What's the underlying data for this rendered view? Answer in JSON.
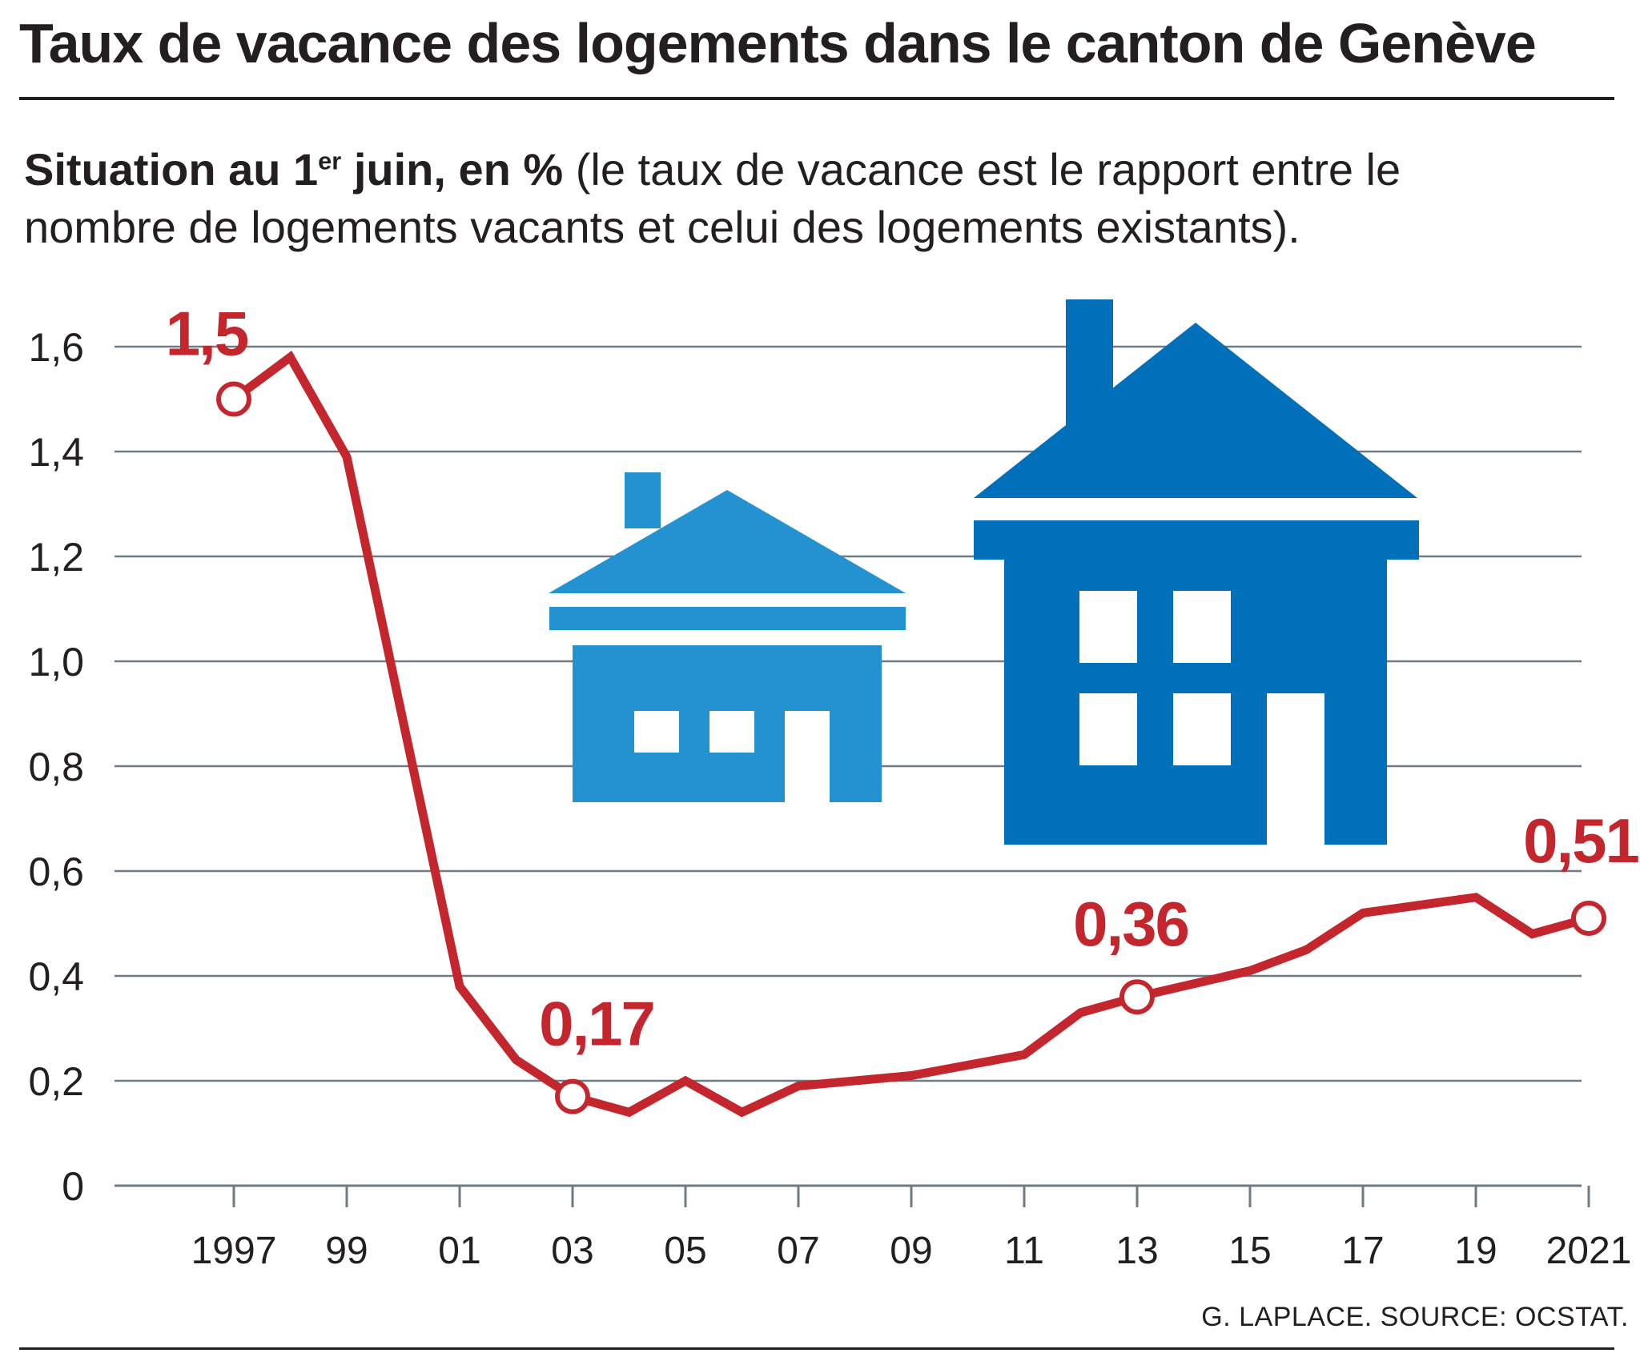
{
  "header": {
    "title": "Taux de vacance des logements dans le canton de Genève"
  },
  "subtitle": {
    "bold_pre": "Situation au 1",
    "bold_sup": "er",
    "bold_post": " juin, en %",
    "rest": " (le taux de vacance est le rapport entre le nombre de logements vacants et celui des logements existants)."
  },
  "footer": {
    "credit": "G. LAPLACE. SOURCE: OCSTAT."
  },
  "colors": {
    "line": "#c4262e",
    "grid": "#6d7b85",
    "text": "#231f20",
    "house_light": "#2492d1",
    "house_dark": "#0070bb"
  },
  "icons": [
    "small-house-icon",
    "large-house-icon"
  ],
  "chart_data": {
    "type": "line",
    "ylim": [
      0,
      1.6
    ],
    "y_ticks": [
      {
        "value": 0,
        "label": "0"
      },
      {
        "value": 0.2,
        "label": "0,2"
      },
      {
        "value": 0.4,
        "label": "0,4"
      },
      {
        "value": 0.6,
        "label": "0,6"
      },
      {
        "value": 0.8,
        "label": "0,8"
      },
      {
        "value": 1.0,
        "label": "1,0"
      },
      {
        "value": 1.2,
        "label": "1,2"
      },
      {
        "value": 1.4,
        "label": "1,4"
      },
      {
        "value": 1.6,
        "label": "1,6"
      }
    ],
    "x_ticks": [
      {
        "year": 1997,
        "label": "1997"
      },
      {
        "year": 1999,
        "label": "99"
      },
      {
        "year": 2001,
        "label": "01"
      },
      {
        "year": 2003,
        "label": "03"
      },
      {
        "year": 2005,
        "label": "05"
      },
      {
        "year": 2007,
        "label": "07"
      },
      {
        "year": 2009,
        "label": "09"
      },
      {
        "year": 2011,
        "label": "11"
      },
      {
        "year": 2013,
        "label": "13"
      },
      {
        "year": 2015,
        "label": "15"
      },
      {
        "year": 2017,
        "label": "17"
      },
      {
        "year": 2019,
        "label": "19"
      },
      {
        "year": 2021,
        "label": "2021"
      }
    ],
    "grid": true,
    "series": [
      {
        "points": [
          {
            "year": 1997,
            "value": 1.5
          },
          {
            "year": 1998,
            "value": 1.58
          },
          {
            "year": 1999,
            "value": 1.39
          },
          {
            "year": 2001,
            "value": 0.38
          },
          {
            "year": 2002,
            "value": 0.24
          },
          {
            "year": 2003,
            "value": 0.17
          },
          {
            "year": 2004,
            "value": 0.14
          },
          {
            "year": 2005,
            "value": 0.2
          },
          {
            "year": 2006,
            "value": 0.14
          },
          {
            "year": 2007,
            "value": 0.19
          },
          {
            "year": 2009,
            "value": 0.21
          },
          {
            "year": 2011,
            "value": 0.25
          },
          {
            "year": 2012,
            "value": 0.33
          },
          {
            "year": 2013,
            "value": 0.36
          },
          {
            "year": 2015,
            "value": 0.41
          },
          {
            "year": 2016,
            "value": 0.45
          },
          {
            "year": 2017,
            "value": 0.52
          },
          {
            "year": 2019,
            "value": 0.55
          },
          {
            "year": 2020,
            "value": 0.48
          },
          {
            "year": 2021,
            "value": 0.51
          }
        ]
      }
    ],
    "annotations": [
      {
        "year": 1997,
        "value": 1.5,
        "label": "1,5"
      },
      {
        "year": 2003,
        "value": 0.17,
        "label": "0,17"
      },
      {
        "year": 2013,
        "value": 0.36,
        "label": "0,36"
      },
      {
        "year": 2021,
        "value": 0.51,
        "label": "0,51"
      }
    ]
  }
}
